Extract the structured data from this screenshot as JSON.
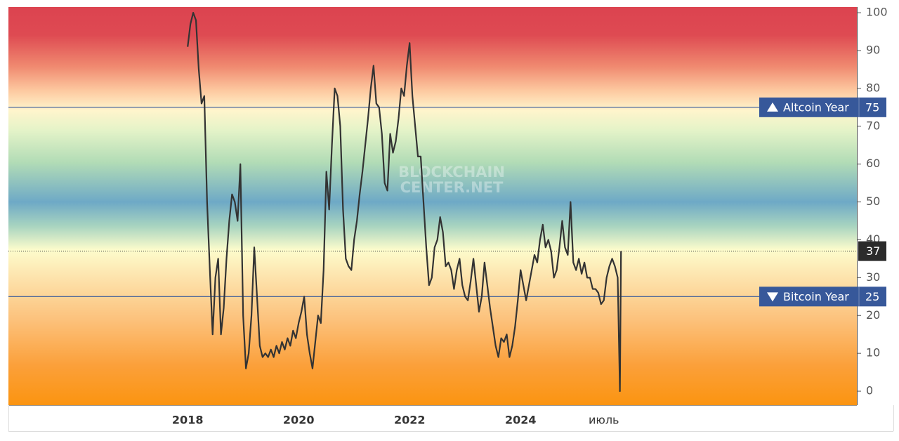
{
  "chart_data": {
    "type": "line",
    "watermark": [
      "BLOCKCHAIN",
      "CENTER.NET"
    ],
    "xlim": [
      2014.77,
      2030.06
    ],
    "ylim": [
      -3.7,
      101.5
    ],
    "xticks": [
      2018,
      2020,
      2022,
      2024,
      {
        "value": 2025.5,
        "label": "июль"
      }
    ],
    "yticks": [
      0,
      10,
      20,
      30,
      40,
      50,
      60,
      70,
      80,
      90,
      100
    ],
    "color": "#333333",
    "current": 37,
    "thresholds": [
      {
        "label": "Altcoin Year",
        "value": 75,
        "color": "#37589a",
        "marker": "up"
      },
      {
        "label": "Bitcoin Year",
        "value": 25,
        "color": "#37589a",
        "marker": "down"
      }
    ],
    "x": [
      2018,
      2018.05,
      2018.1,
      2018.15,
      2018.2,
      2018.25,
      2018.3,
      2018.35,
      2018.4,
      2018.45,
      2018.5,
      2018.55,
      2018.6,
      2018.65,
      2018.7,
      2018.75,
      2018.8,
      2018.85,
      2018.9,
      2018.95,
      2019,
      2019.05,
      2019.1,
      2019.15,
      2019.2,
      2019.25,
      2019.3,
      2019.35,
      2019.4,
      2019.45,
      2019.5,
      2019.55,
      2019.6,
      2019.65,
      2019.7,
      2019.75,
      2019.8,
      2019.85,
      2019.9,
      2019.95,
      2020,
      2020.05,
      2020.1,
      2020.15,
      2020.2,
      2020.25,
      2020.3,
      2020.35,
      2020.4,
      2020.45,
      2020.5,
      2020.55,
      2020.6,
      2020.65,
      2020.7,
      2020.75,
      2020.8,
      2020.85,
      2020.9,
      2020.95,
      2021,
      2021.05,
      2021.1,
      2021.15,
      2021.2,
      2021.25,
      2021.3,
      2021.35,
      2021.4,
      2021.45,
      2021.5,
      2021.55,
      2021.6,
      2021.65,
      2021.7,
      2021.75,
      2021.8,
      2021.85,
      2021.9,
      2021.95,
      2022,
      2022.05,
      2022.1,
      2022.15,
      2022.2,
      2022.25,
      2022.3,
      2022.35,
      2022.4,
      2022.45,
      2022.5,
      2022.55,
      2022.6,
      2022.65,
      2022.7,
      2022.75,
      2022.8,
      2022.85,
      2022.9,
      2022.95,
      2023,
      2023.05,
      2023.1,
      2023.15,
      2023.2,
      2023.25,
      2023.3,
      2023.35,
      2023.4,
      2023.45,
      2023.5,
      2023.55,
      2023.6,
      2023.65,
      2023.7,
      2023.75,
      2023.8,
      2023.85,
      2023.9,
      2023.95,
      2024,
      2024.05,
      2024.1,
      2024.15,
      2024.2,
      2024.25,
      2024.3,
      2024.35,
      2024.4,
      2024.45,
      2024.5,
      2024.55,
      2024.6,
      2024.65,
      2024.7,
      2024.75,
      2024.8,
      2024.85,
      2024.9,
      2024.95,
      2025,
      2025.05,
      2025.1,
      2025.15,
      2025.2,
      2025.25,
      2025.3,
      2025.35,
      2025.4,
      2025.45,
      2025.5,
      2025.55,
      2025.6,
      2025.65,
      2025.7,
      2025.75,
      2025.79,
      2025.81
    ],
    "values": [
      91,
      97,
      100,
      98,
      85,
      76,
      78,
      50,
      32,
      15,
      30,
      35,
      15,
      22,
      35,
      45,
      52,
      50,
      45,
      60,
      20,
      6,
      10,
      20,
      38,
      25,
      12,
      9,
      10,
      9,
      11,
      9,
      12,
      10,
      13,
      11,
      14,
      12,
      16,
      14,
      18,
      21,
      25,
      15,
      10,
      6,
      13,
      20,
      18,
      32,
      58,
      48,
      65,
      80,
      78,
      70,
      48,
      35,
      33,
      32,
      40,
      45,
      52,
      58,
      65,
      72,
      80,
      86,
      76,
      75,
      68,
      55,
      53,
      68,
      63,
      66,
      72,
      80,
      78,
      86,
      92,
      78,
      70,
      62,
      62,
      50,
      38,
      28,
      30,
      38,
      40,
      46,
      42,
      33,
      34,
      32,
      27,
      32,
      35,
      28,
      25,
      24,
      29,
      35,
      28,
      21,
      25,
      34,
      28,
      22,
      17,
      12,
      9,
      14,
      13,
      15,
      9,
      12,
      17,
      24,
      32,
      28,
      24,
      28,
      32,
      36,
      34,
      40,
      44,
      38,
      40,
      37,
      30,
      32,
      38,
      45,
      38,
      36,
      50,
      34,
      32,
      35,
      31,
      34,
      30,
      30,
      27,
      27,
      26,
      23,
      24,
      30,
      33,
      35,
      33,
      30,
      0,
      37
    ]
  }
}
